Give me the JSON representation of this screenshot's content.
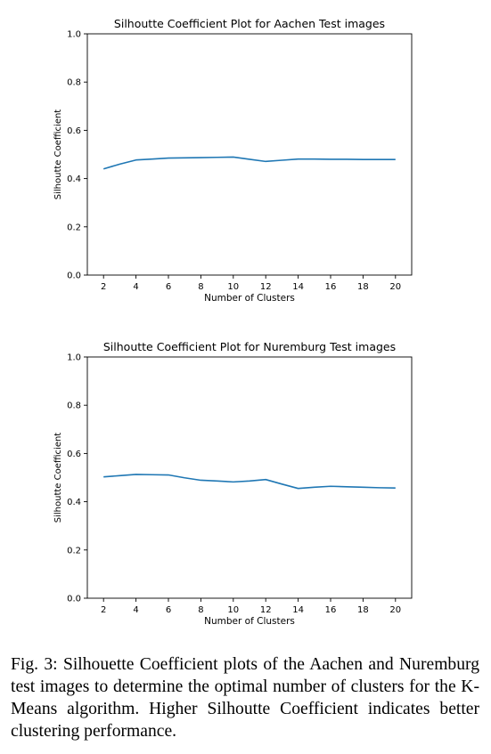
{
  "chart_data": [
    {
      "type": "line",
      "title": "Silhoutte Coefficient Plot for Aachen Test images",
      "xlabel": "Number of Clusters",
      "ylabel": "Silhoutte Coefficient",
      "x": [
        2,
        3,
        4,
        5,
        6,
        7,
        8,
        9,
        10,
        11,
        12,
        13,
        14,
        15,
        16,
        17,
        18,
        19,
        20
      ],
      "series": [
        {
          "values": [
            0.44,
            0.46,
            0.477,
            0.481,
            0.485,
            0.486,
            0.487,
            0.488,
            0.489,
            0.48,
            0.471,
            0.476,
            0.481,
            0.481,
            0.48,
            0.48,
            0.479,
            0.479,
            0.479
          ]
        }
      ],
      "xlim": [
        1,
        21
      ],
      "ylim": [
        0,
        1.0
      ],
      "xticks": [
        2,
        4,
        6,
        8,
        10,
        12,
        14,
        16,
        18,
        20
      ],
      "yticks": [
        0.0,
        0.2,
        0.4,
        0.6,
        0.8,
        1.0
      ],
      "grid": false,
      "color": "#1f77b4"
    },
    {
      "type": "line",
      "title": "Silhoutte Coefficient Plot for Nuremburg Test images",
      "xlabel": "Number of Clusters",
      "ylabel": "Silhoutte Coefficient",
      "x": [
        2,
        3,
        4,
        5,
        6,
        7,
        8,
        9,
        10,
        11,
        12,
        13,
        14,
        15,
        16,
        17,
        18,
        19,
        20
      ],
      "series": [
        {
          "values": [
            0.503,
            0.508,
            0.513,
            0.512,
            0.511,
            0.499,
            0.489,
            0.486,
            0.482,
            0.486,
            0.492,
            0.473,
            0.455,
            0.46,
            0.464,
            0.462,
            0.46,
            0.458,
            0.457
          ]
        }
      ],
      "xlim": [
        1,
        21
      ],
      "ylim": [
        0,
        1.0
      ],
      "xticks": [
        2,
        4,
        6,
        8,
        10,
        12,
        14,
        16,
        18,
        20
      ],
      "yticks": [
        0.0,
        0.2,
        0.4,
        0.6,
        0.8,
        1.0
      ],
      "grid": false,
      "color": "#1f77b4"
    }
  ],
  "caption": "Fig. 3: Silhouette Coefficient plots of the Aachen and Nuremburg test images to determine the optimal number of clusters for the K-Means algorithm. Higher Silhoutte Coefficient indicates better clustering performance."
}
